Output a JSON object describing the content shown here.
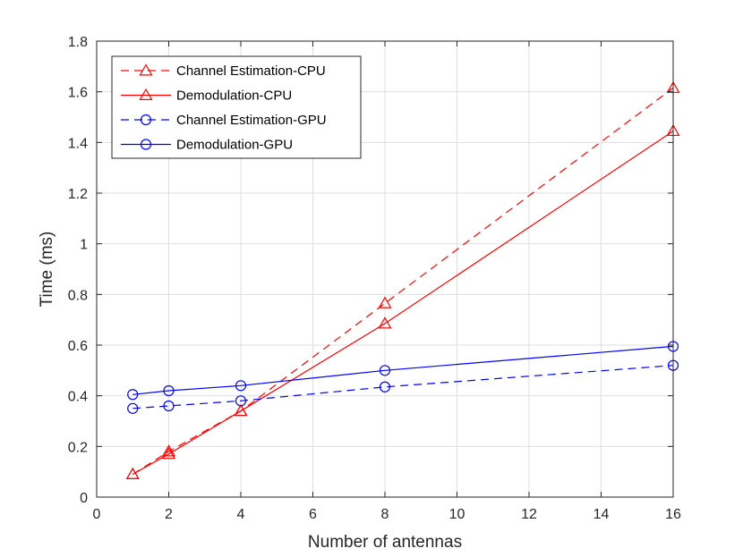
{
  "chart_data": {
    "type": "line",
    "title": "",
    "xlabel": "Number of antennas",
    "ylabel": "Time (ms)",
    "xlim": [
      0,
      16
    ],
    "ylim": [
      0,
      1.8
    ],
    "xticks": [
      0,
      2,
      4,
      6,
      8,
      10,
      12,
      14,
      16
    ],
    "yticks": [
      0,
      0.2,
      0.4,
      0.6,
      0.8,
      1,
      1.2,
      1.4,
      1.6,
      1.8
    ],
    "xtick_labels": [
      "0",
      "2",
      "4",
      "6",
      "8",
      "10",
      "12",
      "14",
      "16"
    ],
    "ytick_labels": [
      "0",
      "0.2",
      "0.4",
      "0.6",
      "0.8",
      "1",
      "1.2",
      "1.4",
      "1.6",
      "1.8"
    ],
    "grid": true,
    "legend_position": "top-left",
    "x": [
      1,
      2,
      4,
      8,
      16
    ],
    "series": [
      {
        "name": "Channel Estimation-CPU",
        "color": "#ff0000",
        "dash": "dashed",
        "marker": "triangle",
        "values": [
          0.09,
          0.18,
          0.34,
          0.765,
          1.615
        ]
      },
      {
        "name": "Demodulation-CPU",
        "color": "#ff0000",
        "dash": "solid",
        "marker": "triangle",
        "values": [
          0.09,
          0.17,
          0.34,
          0.685,
          1.445
        ]
      },
      {
        "name": "Channel Estimation-GPU",
        "color": "#0000ff",
        "dash": "dashed",
        "marker": "circle",
        "values": [
          0.35,
          0.36,
          0.38,
          0.435,
          0.52
        ]
      },
      {
        "name": "Demodulation-GPU",
        "color": "#0000ff",
        "dash": "solid",
        "marker": "circle",
        "values": [
          0.405,
          0.42,
          0.44,
          0.5,
          0.595
        ]
      }
    ]
  }
}
